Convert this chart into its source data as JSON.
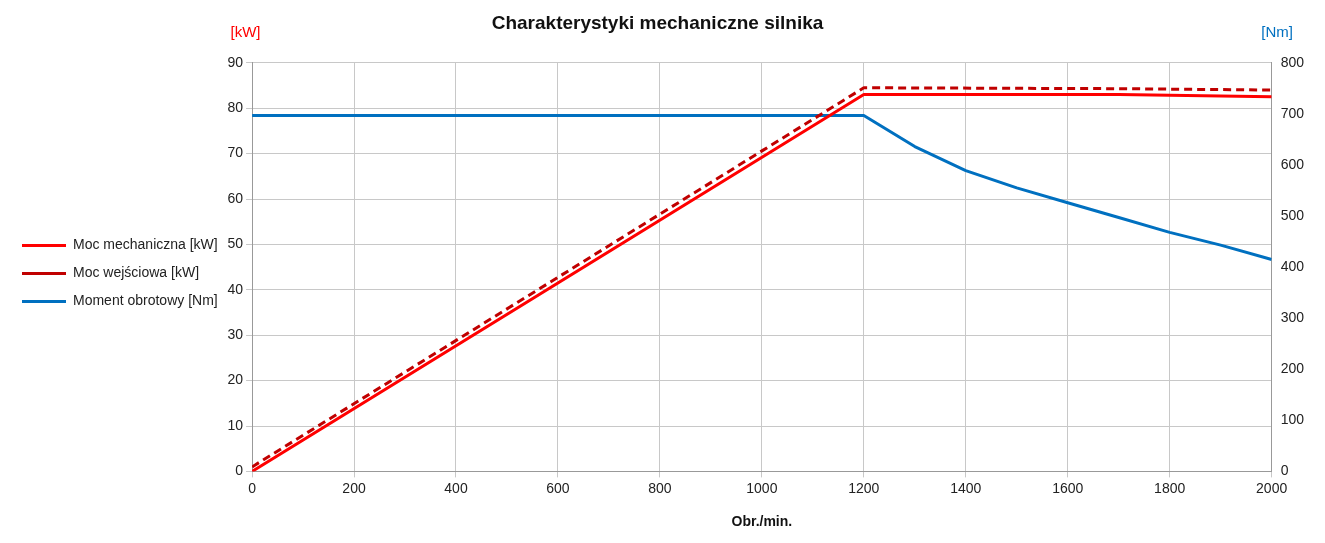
{
  "chart_data": {
    "type": "line",
    "title": "Charakterystyki mechaniczne silnika",
    "xlabel": "Obr./min.",
    "ylabel": "[kW]",
    "y2label": "[Nm]",
    "xlim": [
      0,
      2000
    ],
    "xticks": [
      0,
      200,
      400,
      600,
      800,
      1000,
      1200,
      1400,
      1600,
      1800,
      2000
    ],
    "ylim": [
      0,
      90
    ],
    "yticks": [
      0,
      10,
      20,
      30,
      40,
      50,
      60,
      70,
      80,
      90
    ],
    "y2lim": [
      0,
      800
    ],
    "y2ticks": [
      0,
      100,
      200,
      300,
      400,
      500,
      600,
      700,
      800
    ],
    "grid": true,
    "legend": "left",
    "marker": "none",
    "series": [
      {
        "name": "Moc mechaniczna [kW]",
        "color": "#ff0000",
        "line_style": "solid",
        "x": [
          0,
          1200,
          1700,
          2000
        ],
        "values": [
          0,
          83,
          83,
          82.5
        ]
      },
      {
        "name": "Moc wejściowa [kW]",
        "color": "#c00000",
        "line_style": "dashed",
        "x": [
          0,
          1200,
          1700,
          2000
        ],
        "values": [
          1,
          84.5,
          84.3,
          84
        ]
      },
      {
        "name": "Moment obrotowy [Nm]",
        "color": "#0070c0",
        "line_style": "solid",
        "axis": "y2",
        "x": [
          0,
          1200,
          1300,
          1400,
          1500,
          1600,
          1700,
          1800,
          1900,
          2000
        ],
        "values": [
          697,
          697,
          636,
          589,
          555,
          526,
          497,
          468,
          443,
          415
        ]
      }
    ]
  }
}
